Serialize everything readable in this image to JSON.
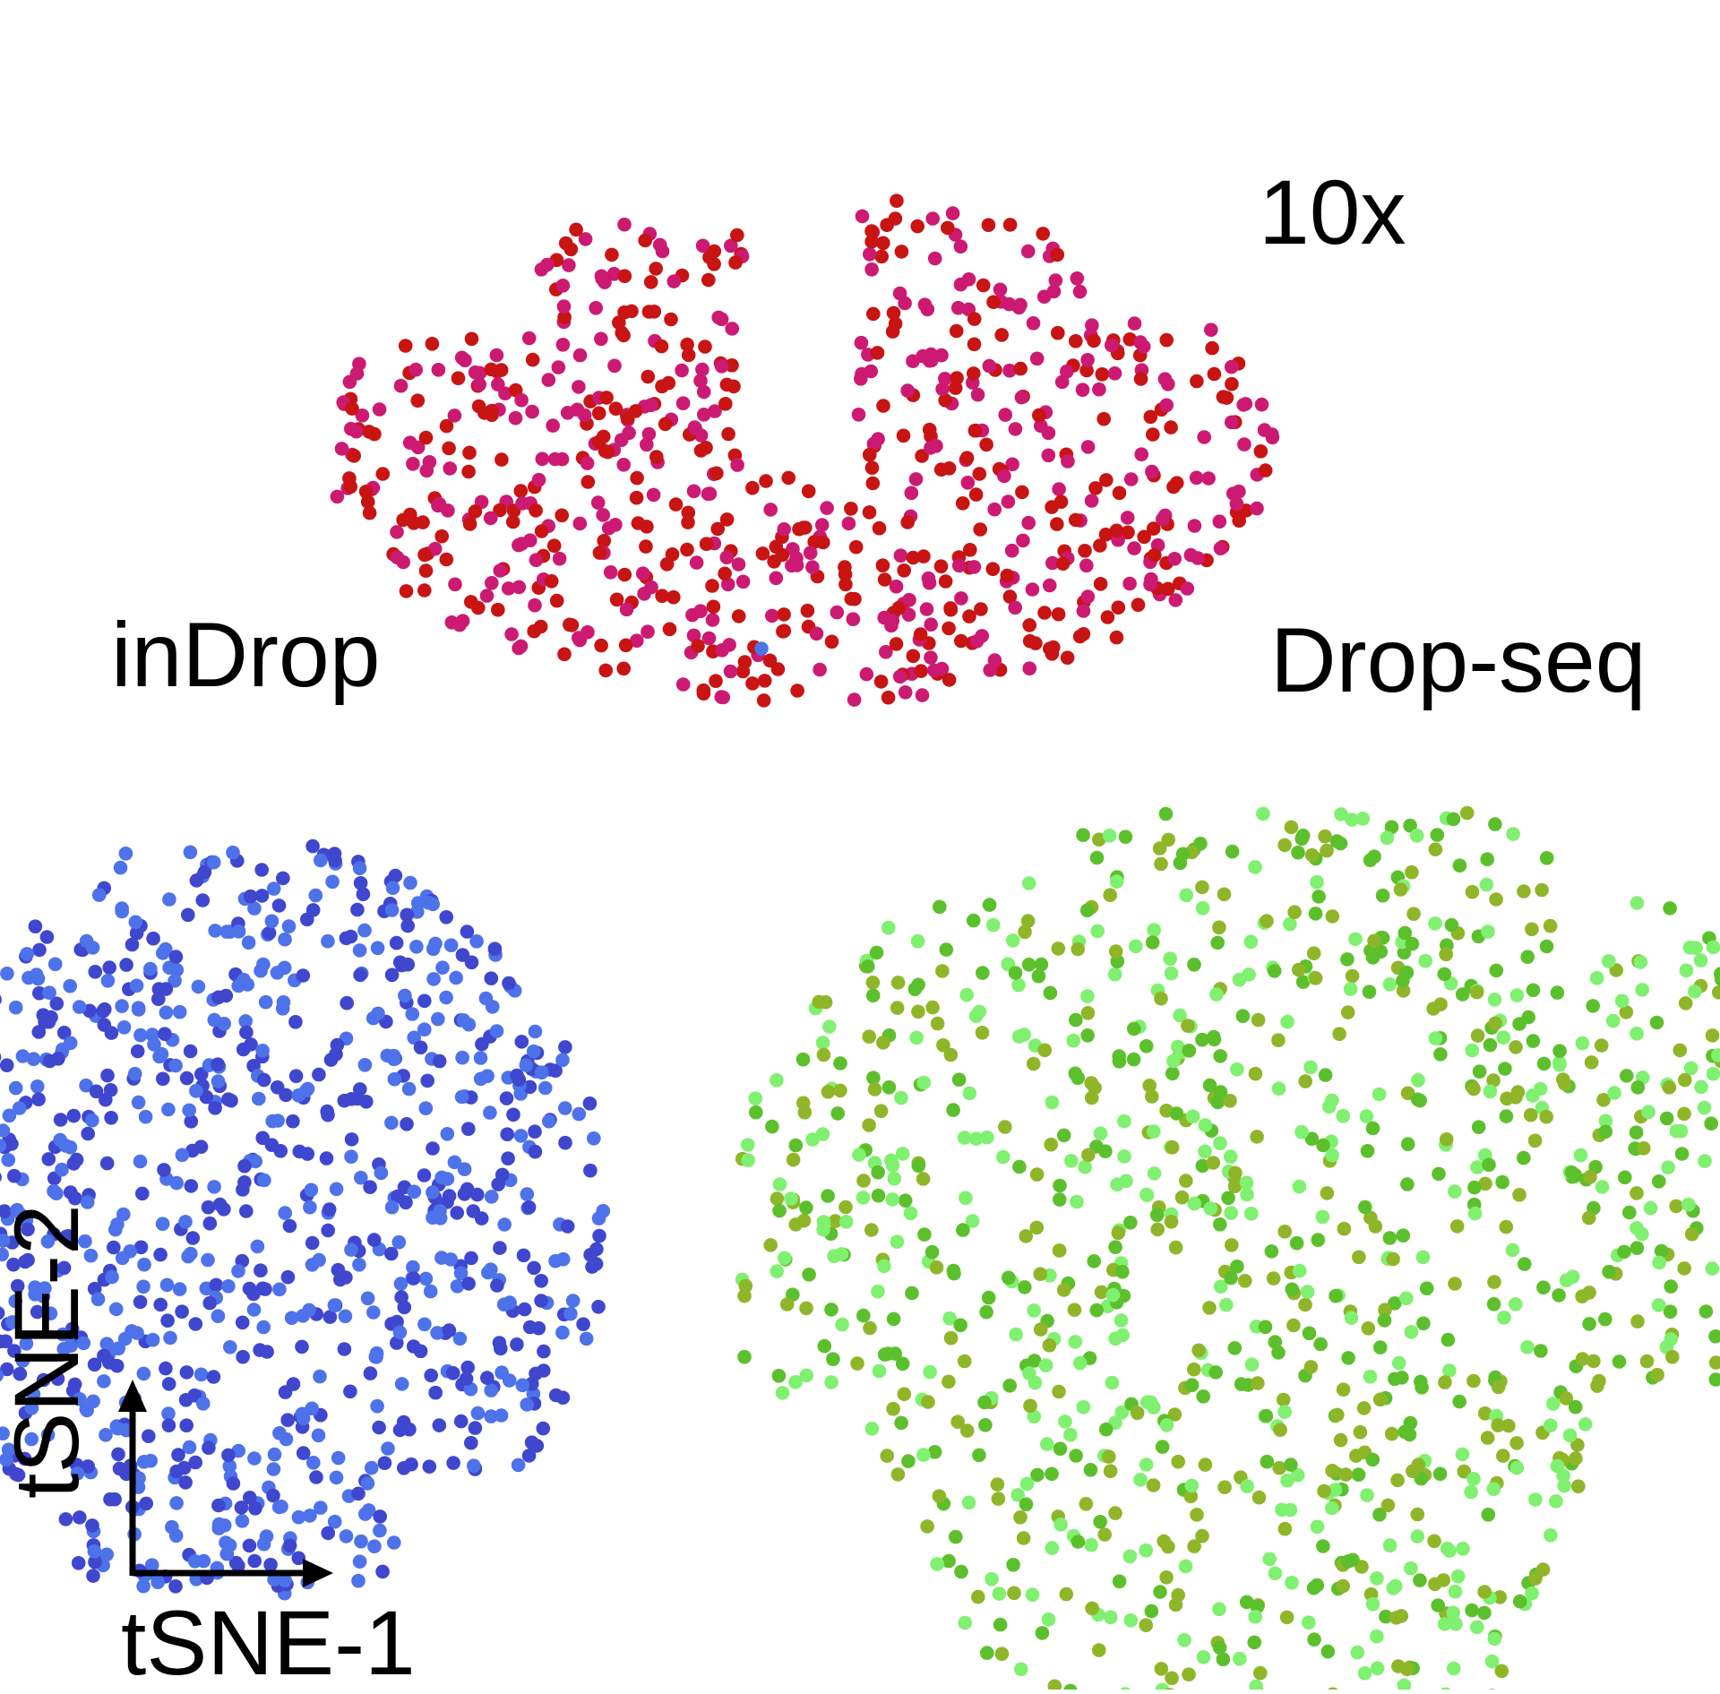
{
  "chart_data": {
    "type": "scatter",
    "title": "",
    "xlabel": "tSNE-1",
    "ylabel": "tSNE-2",
    "axes_style": "arrows",
    "grid": false,
    "legend": "none",
    "series": [
      {
        "name": "10x",
        "cluster_label": "10x",
        "center": [
          -3,
          26
        ],
        "radius": [
          24,
          13
        ],
        "n_points": 750,
        "colors": [
          "#cc1a72",
          "#c81413"
        ]
      },
      {
        "name": "inDrop",
        "cluster_label": "inDrop",
        "center": [
          -32,
          -13
        ],
        "radius": [
          19,
          19
        ],
        "n_points": 1000,
        "colors": [
          "#3f47cf",
          "#4d72ea"
        ]
      },
      {
        "name": "Drop-seq",
        "cluster_label": "Drop-seq",
        "center": [
          22,
          -15
        ],
        "radius": [
          28,
          23
        ],
        "n_points": 1150,
        "colors": [
          "#5cc02c",
          "#7ff06f",
          "#8fb629"
        ]
      }
    ],
    "stray_points": [
      {
        "x": -5,
        "y": 16,
        "color": "#4d72ea"
      }
    ]
  },
  "colors": {
    "ink": "#000000",
    "background": "#ffffff"
  }
}
